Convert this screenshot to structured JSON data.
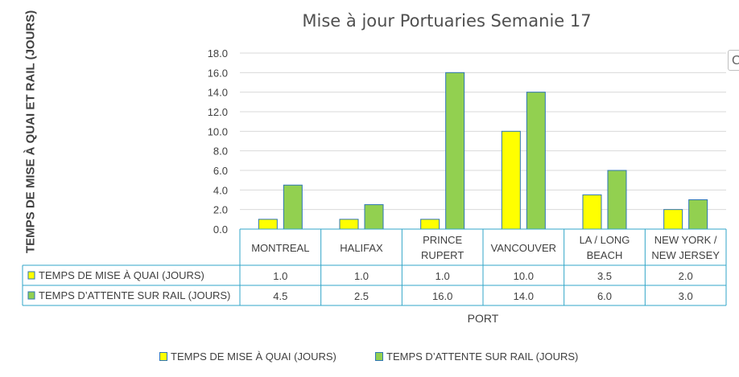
{
  "chart_data": {
    "type": "bar",
    "title": "Mise à jour Portuaries Semanie 17",
    "ylabel": "TEMPS DE MISE À QUAI ET RAIL (JOURS)",
    "xlabel": "PORT",
    "ylim": [
      0,
      18
    ],
    "ytick_step": 2,
    "yticks": [
      "0.0",
      "2.0",
      "4.0",
      "6.0",
      "8.0",
      "10.0",
      "12.0",
      "14.0",
      "16.0",
      "18.0"
    ],
    "grid": true,
    "legend_position": "bottom",
    "categories": [
      [
        "MONTREAL"
      ],
      [
        "HALIFAX"
      ],
      [
        "PRINCE",
        "RUPERT"
      ],
      [
        "VANCOUVER"
      ],
      [
        "LA / LONG",
        "BEACH"
      ],
      [
        "NEW YORK /",
        "NEW JERSEY"
      ]
    ],
    "series": [
      {
        "name": "TEMPS DE MISE À QUAI (JOURS)",
        "color": "#ffff00",
        "values": [
          1.0,
          1.0,
          1.0,
          10.0,
          3.5,
          2.0
        ],
        "labels": [
          "1.0",
          "1.0",
          "1.0",
          "10.0",
          "3.5",
          "2.0"
        ]
      },
      {
        "name": "TEMPS  D’ATTENTE SUR RAIL (JOURS)",
        "color": "#92d050",
        "values": [
          4.5,
          2.5,
          16.0,
          14.0,
          6.0,
          3.0
        ],
        "labels": [
          "4.5",
          "2.5",
          "16.0",
          "14.0",
          "6.0",
          "3.0"
        ]
      }
    ],
    "colors": {
      "bar_border": "#2e75b6",
      "table_border": "#31a6c8",
      "grid": "#d9d9d9"
    }
  },
  "ui": {
    "edge_icon": "C"
  }
}
